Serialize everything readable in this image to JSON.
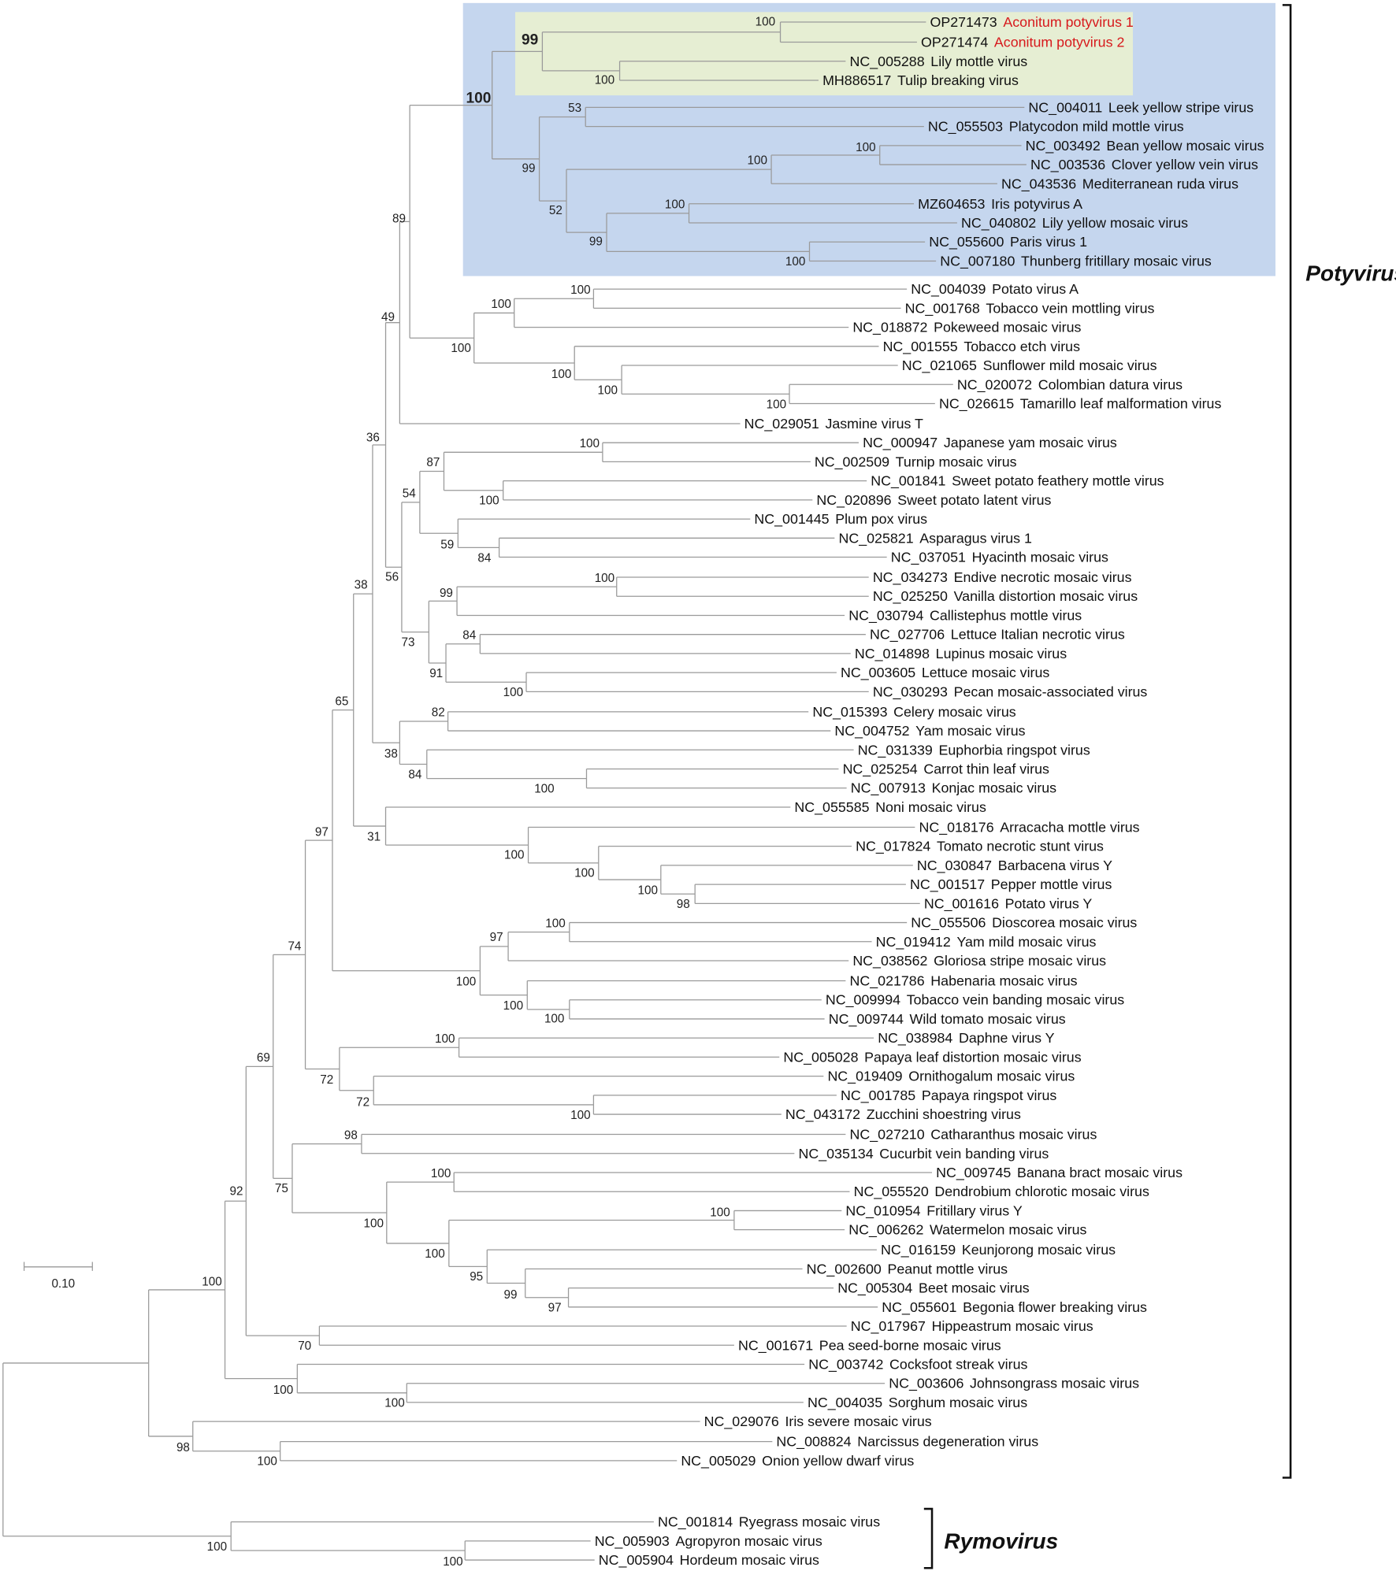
{
  "leaves": [
    {
      "accession": "OP271473",
      "name": "Aconitum potyvirus 1"
    },
    {
      "accession": "OP271474",
      "name": "Aconitum potyvirus 2"
    },
    {
      "accession": "NC_005288",
      "name": "Lily mottle virus"
    },
    {
      "accession": "MH886517",
      "name": "Tulip breaking virus"
    },
    {
      "accession": "NC_004011",
      "name": "Leek yellow stripe virus"
    },
    {
      "accession": "NC_055503",
      "name": "Platycodon mild mottle virus"
    },
    {
      "accession": "NC_003492",
      "name": "Bean yellow mosaic virus"
    },
    {
      "accession": "NC_003536",
      "name": "Clover yellow vein virus"
    },
    {
      "accession": "NC_043536",
      "name": "Mediterranean ruda virus"
    },
    {
      "accession": "MZ604653",
      "name": "Iris potyvirus A"
    },
    {
      "accession": "NC_040802",
      "name": "Lily yellow mosaic virus"
    },
    {
      "accession": "NC_055600",
      "name": "Paris virus 1"
    },
    {
      "accession": "NC_007180",
      "name": "Thunberg fritillary mosaic virus"
    },
    {
      "accession": "NC_004039",
      "name": "Potato virus A"
    },
    {
      "accession": "NC_001768",
      "name": "Tobacco vein mottling virus"
    },
    {
      "accession": "NC_018872",
      "name": "Pokeweed mosaic virus"
    },
    {
      "accession": "NC_001555",
      "name": "Tobacco etch virus"
    },
    {
      "accession": "NC_021065",
      "name": "Sunflower mild mosaic virus"
    },
    {
      "accession": "NC_020072",
      "name": "Colombian datura virus"
    },
    {
      "accession": "NC_026615",
      "name": "Tamarillo leaf malformation virus"
    },
    {
      "accession": "NC_029051",
      "name": "Jasmine virus T"
    },
    {
      "accession": "NC_000947",
      "name": "Japanese yam mosaic virus"
    },
    {
      "accession": "NC_002509",
      "name": "Turnip mosaic virus"
    },
    {
      "accession": "NC_001841",
      "name": "Sweet potato feathery mottle virus"
    },
    {
      "accession": "NC_020896",
      "name": "Sweet potato latent virus"
    },
    {
      "accession": "NC_001445",
      "name": "Plum pox virus"
    },
    {
      "accession": "NC_025821",
      "name": "Asparagus virus 1"
    },
    {
      "accession": "NC_037051",
      "name": "Hyacinth mosaic virus"
    },
    {
      "accession": "NC_034273",
      "name": "Endive necrotic mosaic virus"
    },
    {
      "accession": "NC_025250",
      "name": "Vanilla distortion mosaic virus"
    },
    {
      "accession": "NC_030794",
      "name": "Callistephus mottle virus"
    },
    {
      "accession": "NC_027706",
      "name": "Lettuce Italian necrotic virus"
    },
    {
      "accession": "NC_014898",
      "name": "Lupinus mosaic virus"
    },
    {
      "accession": "NC_003605",
      "name": "Lettuce mosaic virus"
    },
    {
      "accession": "NC_030293",
      "name": "Pecan mosaic-associated virus"
    },
    {
      "accession": "NC_015393",
      "name": "Celery mosaic virus"
    },
    {
      "accession": "NC_004752",
      "name": "Yam mosaic virus"
    },
    {
      "accession": "NC_031339",
      "name": "Euphorbia ringspot virus"
    },
    {
      "accession": "NC_025254",
      "name": "Carrot thin leaf virus"
    },
    {
      "accession": "NC_007913",
      "name": "Konjac mosaic virus"
    },
    {
      "accession": "NC_055585",
      "name": "Noni mosaic virus"
    },
    {
      "accession": "NC_018176",
      "name": "Arracacha mottle virus"
    },
    {
      "accession": "NC_017824",
      "name": "Tomato necrotic stunt virus"
    },
    {
      "accession": "NC_030847",
      "name": "Barbacena virus Y"
    },
    {
      "accession": "NC_001517",
      "name": "Pepper mottle virus"
    },
    {
      "accession": "NC_001616",
      "name": "Potato virus Y"
    },
    {
      "accession": "NC_055506",
      "name": "Dioscorea mosaic virus"
    },
    {
      "accession": "NC_019412",
      "name": "Yam mild mosaic virus"
    },
    {
      "accession": "NC_038562",
      "name": "Gloriosa stripe mosaic virus"
    },
    {
      "accession": "NC_021786",
      "name": "Habenaria mosaic virus"
    },
    {
      "accession": "NC_009994",
      "name": "Tobacco vein banding mosaic virus"
    },
    {
      "accession": "NC_009744",
      "name": "Wild tomato mosaic virus"
    },
    {
      "accession": "NC_038984",
      "name": "Daphne virus Y"
    },
    {
      "accession": "NC_005028",
      "name": "Papaya leaf distortion mosaic virus"
    },
    {
      "accession": "NC_019409",
      "name": "Ornithogalum mosaic virus"
    },
    {
      "accession": "NC_001785",
      "name": "Papaya ringspot virus"
    },
    {
      "accession": "NC_043172",
      "name": "Zucchini shoestring virus"
    },
    {
      "accession": "NC_027210",
      "name": "Catharanthus mosaic virus"
    },
    {
      "accession": "NC_035134",
      "name": "Cucurbit vein banding virus"
    },
    {
      "accession": "NC_009745",
      "name": "Banana bract mosaic virus"
    },
    {
      "accession": "NC_055520",
      "name": "Dendrobium chlorotic mosaic virus"
    },
    {
      "accession": "NC_010954",
      "name": "Fritillary virus Y"
    },
    {
      "accession": "NC_006262",
      "name": "Watermelon mosaic virus"
    },
    {
      "accession": "NC_016159",
      "name": "Keunjorong mosaic virus"
    },
    {
      "accession": "NC_002600",
      "name": "Peanut mottle virus"
    },
    {
      "accession": "NC_005304",
      "name": "Beet mosaic virus"
    },
    {
      "accession": "NC_055601",
      "name": "Begonia flower breaking virus"
    },
    {
      "accession": "NC_017967",
      "name": "Hippeastrum mosaic virus"
    },
    {
      "accession": "NC_001671",
      "name": "Pea seed-borne mosaic virus"
    },
    {
      "accession": "NC_003742",
      "name": "Cocksfoot streak virus"
    },
    {
      "accession": "NC_003606",
      "name": "Johnsongrass mosaic virus"
    },
    {
      "accession": "NC_004035",
      "name": "Sorghum mosaic virus"
    },
    {
      "accession": "NC_029076",
      "name": "Iris severe mosaic virus"
    },
    {
      "accession": "NC_008824",
      "name": "Narcissus degeneration virus"
    },
    {
      "accession": "NC_005029",
      "name": "Onion yellow dwarf virus"
    },
    {
      "accession": "NC_001814",
      "name": "Ryegrass mosaic virus"
    },
    {
      "accession": "NC_005903",
      "name": "Agropyron mosaic virus"
    },
    {
      "accession": "NC_005904",
      "name": "Hordeum mosaic virus"
    }
  ],
  "support_values": [
    100,
    100,
    99,
    53,
    100,
    100,
    100,
    100,
    99,
    52,
    99,
    100,
    100,
    100,
    100,
    100,
    100,
    100,
    89,
    49,
    100,
    100,
    87,
    84,
    59,
    54,
    100,
    99,
    84,
    100,
    91,
    73,
    56,
    82,
    100,
    84,
    38,
    36,
    38,
    98,
    100,
    100,
    100,
    31,
    65,
    100,
    97,
    100,
    100,
    100,
    97,
    100,
    100,
    72,
    72,
    74,
    98,
    100,
    100,
    97,
    99,
    95,
    100,
    100,
    75,
    69,
    70,
    92,
    100,
    100,
    100,
    100,
    98,
    100,
    100
  ],
  "scale_bar": "0.10",
  "clades": [
    {
      "label": "Potyvirus"
    },
    {
      "label": "Rymovirus"
    }
  ]
}
